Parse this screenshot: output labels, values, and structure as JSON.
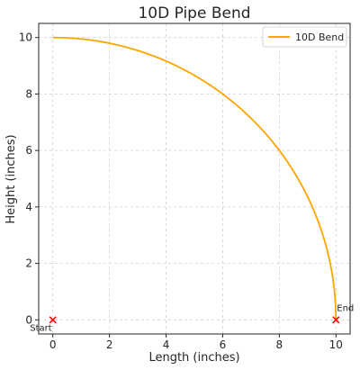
{
  "chart_data": {
    "type": "line",
    "title": "10D Pipe Bend",
    "xlabel": "Length (inches)",
    "ylabel": "Height (inches)",
    "xlim": [
      -0.5,
      10.5
    ],
    "ylim": [
      -0.5,
      10.5
    ],
    "xticks": [
      0,
      2,
      4,
      6,
      8,
      10
    ],
    "yticks": [
      0,
      2,
      4,
      6,
      8,
      10
    ],
    "grid": true,
    "legend_position": "top-right",
    "series": [
      {
        "name": "10D Bend",
        "color": "#FFA500",
        "curve": "quarter-circle",
        "center": [
          0,
          0
        ],
        "radius": 10,
        "x": [
          0,
          1.7365,
          3.4202,
          5.0,
          6.4279,
          7.6604,
          8.6603,
          9.3969,
          9.8481,
          10
        ],
        "y": [
          10,
          9.8481,
          9.3969,
          8.6603,
          7.6604,
          6.4279,
          5.0,
          3.4202,
          1.7365,
          0
        ]
      }
    ],
    "markers": [
      {
        "label": "Start",
        "x": 0,
        "y": 0,
        "symbol": "x",
        "color": "#FF0000"
      },
      {
        "label": "End",
        "x": 10,
        "y": 0,
        "symbol": "x",
        "color": "#FF0000"
      }
    ]
  }
}
